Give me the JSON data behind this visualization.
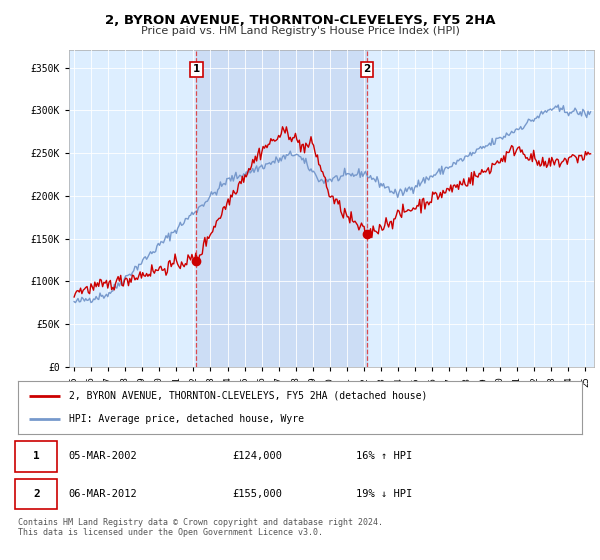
{
  "title": "2, BYRON AVENUE, THORNTON-CLEVELEYS, FY5 2HA",
  "subtitle": "Price paid vs. HM Land Registry's House Price Index (HPI)",
  "ylabel_ticks": [
    "£0",
    "£50K",
    "£100K",
    "£150K",
    "£200K",
    "£250K",
    "£300K",
    "£350K"
  ],
  "ytick_values": [
    0,
    50000,
    100000,
    150000,
    200000,
    250000,
    300000,
    350000
  ],
  "ylim": [
    0,
    370000
  ],
  "xlim_start": 1994.7,
  "xlim_end": 2025.5,
  "legend_line1": "2, BYRON AVENUE, THORNTON-CLEVELEYS, FY5 2HA (detached house)",
  "legend_line2": "HPI: Average price, detached house, Wyre",
  "line1_color": "#cc0000",
  "line2_color": "#7799cc",
  "shade_color": "#ccddf5",
  "purchase1_date": 2002.18,
  "purchase1_price": 124000,
  "purchase1_label": "1",
  "purchase2_date": 2012.18,
  "purchase2_price": 155000,
  "purchase2_label": "2",
  "table_rows": [
    [
      "1",
      "05-MAR-2002",
      "£124,000",
      "16% ↑ HPI"
    ],
    [
      "2",
      "06-MAR-2012",
      "£155,000",
      "19% ↓ HPI"
    ]
  ],
  "footer_text": "Contains HM Land Registry data © Crown copyright and database right 2024.\nThis data is licensed under the Open Government Licence v3.0.",
  "plot_bg_color": "#ddeeff",
  "outer_bg_color": "#ffffff",
  "grid_color": "#ffffff",
  "vline_color": "#dd3333"
}
